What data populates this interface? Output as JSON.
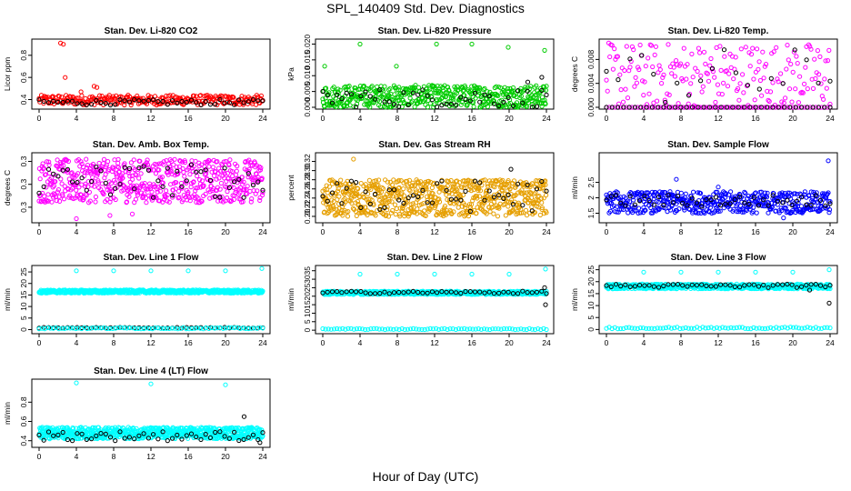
{
  "page": {
    "title": "SPL_140409  Std. Dev. Diagnostics",
    "xlabel": "Hour of Day (UTC)"
  },
  "colors": {
    "red": "#ff0000",
    "green": "#00cc00",
    "magenta": "#ff00ff",
    "orange": "#e69f00",
    "blue": "#0000ff",
    "cyan": "#00ffff",
    "black": "#000000"
  },
  "chart_data": [
    {
      "type": "scatter",
      "title": "Stan. Dev. Li-820 CO2",
      "xlabel": "",
      "ylabel": "Licor ppm",
      "xlim": [
        0,
        24
      ],
      "ylim": [
        0.33,
        0.93
      ],
      "xticks": [
        0,
        4,
        8,
        12,
        16,
        20,
        24
      ],
      "yticks": [
        0.4,
        0.6,
        0.8
      ],
      "series": [
        {
          "color": "red",
          "band": [
            0.35,
            0.44
          ],
          "n": 300,
          "outliers": [
            [
              2.3,
              0.91
            ],
            [
              2.6,
              0.9
            ],
            [
              2.8,
              0.6
            ],
            [
              5.9,
              0.52
            ],
            [
              6.2,
              0.51
            ],
            [
              4.5,
              0.47
            ]
          ]
        },
        {
          "color": "black",
          "band": [
            0.35,
            0.4
          ],
          "n": 48,
          "outliers": []
        }
      ]
    },
    {
      "type": "scatter",
      "title": "Stan. Dev. Li-820 Pressure",
      "xlabel": "",
      "ylabel": "kPa",
      "xlim": [
        0,
        24
      ],
      "ylim": [
        0,
        0.021
      ],
      "xticks": [
        0,
        4,
        8,
        12,
        16,
        20,
        24
      ],
      "yticks": [
        0.0,
        0.005,
        0.01,
        0.015,
        0.02
      ],
      "series": [
        {
          "color": "green",
          "band": [
            0.0,
            0.007
          ],
          "n": 500,
          "outliers": [
            [
              0.2,
              0.013
            ],
            [
              4.0,
              0.02
            ],
            [
              7.9,
              0.013
            ],
            [
              12.2,
              0.02
            ],
            [
              16.0,
              0.02
            ],
            [
              19.9,
              0.019
            ],
            [
              23.8,
              0.018
            ]
          ]
        },
        {
          "color": "black",
          "band": [
            0.0,
            0.006
          ],
          "n": 48,
          "outliers": [
            [
              23.5,
              0.0095
            ],
            [
              22.0,
              0.008
            ]
          ]
        }
      ]
    },
    {
      "type": "scatter",
      "title": "Stan. Dev. Li-820 Temp.",
      "xlabel": "",
      "ylabel": "degrees C",
      "xlim": [
        0,
        24
      ],
      "ylim": [
        0,
        0.0111
      ],
      "xticks": [
        0,
        4,
        8,
        12,
        16,
        20,
        24
      ],
      "yticks": [
        0.0,
        0.004,
        0.008
      ],
      "series": [
        {
          "color": "magenta",
          "band": [
            0.0,
            0.0108
          ],
          "n": 200,
          "outliers": []
        },
        {
          "color": "black",
          "band": [
            0.0,
            0.01
          ],
          "n": 20,
          "outliers": []
        },
        {
          "color": "magenta",
          "band": [
            0.0,
            0.0
          ],
          "n": 80,
          "outliers": []
        },
        {
          "color": "black",
          "band": [
            0.0,
            0.0
          ],
          "n": 40,
          "outliers": []
        }
      ]
    },
    {
      "type": "scatter",
      "title": "Stan. Dev. Amb. Box Temp.",
      "xlabel": "",
      "ylabel": "degrees C",
      "xlim": [
        0,
        24
      ],
      "ylim": [
        0.22,
        0.365
      ],
      "xticks": [
        0,
        4,
        8,
        12,
        16,
        20,
        24
      ],
      "yticks": [
        0.25,
        0.3,
        0.35
      ],
      "series": [
        {
          "color": "magenta",
          "band": [
            0.26,
            0.355
          ],
          "n": 600,
          "outliers": [
            [
              4.0,
              0.225
            ],
            [
              7.6,
              0.232
            ],
            [
              10.0,
              0.235
            ]
          ]
        },
        {
          "color": "black",
          "band": [
            0.27,
            0.345
          ],
          "n": 48,
          "outliers": []
        }
      ]
    },
    {
      "type": "scatter",
      "title": "Stan. Dev. Gas Stream RH",
      "xlabel": "",
      "ylabel": "percent",
      "xlim": [
        0,
        24
      ],
      "ylim": [
        0.19,
        0.335
      ],
      "xticks": [
        0,
        4,
        8,
        12,
        16,
        20,
        24
      ],
      "yticks": [
        0.2,
        0.22,
        0.24,
        0.26,
        0.28,
        0.3,
        0.32
      ],
      "series": [
        {
          "color": "orange",
          "band": [
            0.2,
            0.28
          ],
          "n": 700,
          "outliers": [
            [
              3.3,
              0.325
            ]
          ]
        },
        {
          "color": "black",
          "band": [
            0.21,
            0.28
          ],
          "n": 48,
          "outliers": [
            [
              20.2,
              0.303
            ]
          ]
        }
      ]
    },
    {
      "type": "scatter",
      "title": "Stan. Dev. Sample Flow",
      "xlabel": "",
      "ylabel": "ml/min",
      "xlim": [
        0,
        24
      ],
      "ylim": [
        1.25,
        3.4
      ],
      "xticks": [
        0,
        4,
        8,
        12,
        16,
        20,
        24
      ],
      "yticks": [
        1.5,
        2.0,
        2.5
      ],
      "series": [
        {
          "color": "blue",
          "band": [
            1.5,
            2.2
          ],
          "n": 500,
          "outliers": [
            [
              23.8,
              3.2
            ],
            [
              7.5,
              2.6
            ],
            [
              19.0,
              1.35
            ],
            [
              12.0,
              2.35
            ]
          ]
        },
        {
          "color": "black",
          "band": [
            1.7,
            2.1
          ],
          "n": 48,
          "outliers": []
        }
      ]
    },
    {
      "type": "scatter",
      "title": "Stan. Dev. Line 1 Flow",
      "xlabel": "",
      "ylabel": "ml/min",
      "xlim": [
        0,
        24
      ],
      "ylim": [
        -1,
        27
      ],
      "xticks": [
        0,
        4,
        8,
        12,
        16,
        20,
        24
      ],
      "yticks": [
        0,
        5,
        10,
        15,
        20,
        25
      ],
      "series": [
        {
          "color": "cyan",
          "band": [
            15.8,
            17.2
          ],
          "n": 600,
          "outliers": [
            [
              4.0,
              25.5
            ],
            [
              8.0,
              25.5
            ],
            [
              12.0,
              25.5
            ],
            [
              16.0,
              25.5
            ],
            [
              20.0,
              25.5
            ],
            [
              23.9,
              26.5
            ]
          ]
        },
        {
          "color": "black",
          "band": [
            0.6,
            1.0
          ],
          "n": 48,
          "outliers": []
        },
        {
          "color": "cyan",
          "band": [
            0.3,
            0.9
          ],
          "n": 80,
          "outliers": []
        }
      ]
    },
    {
      "type": "scatter",
      "title": "Stan. Dev. Line 2 Flow",
      "xlabel": "",
      "ylabel": "ml/min",
      "xlim": [
        0,
        24
      ],
      "ylim": [
        -1,
        37
      ],
      "xticks": [
        0,
        4,
        8,
        12,
        16,
        20,
        24
      ],
      "yticks": [
        0,
        5,
        10,
        15,
        20,
        25,
        30,
        35
      ],
      "series": [
        {
          "color": "cyan",
          "band": [
            21.0,
            23.0
          ],
          "n": 600,
          "outliers": [
            [
              4.0,
              33
            ],
            [
              8.0,
              33
            ],
            [
              12.0,
              33
            ],
            [
              16.0,
              33
            ],
            [
              20.0,
              33
            ],
            [
              23.9,
              36
            ]
          ]
        },
        {
          "color": "black",
          "band": [
            21.5,
            23.0
          ],
          "n": 48,
          "outliers": [
            [
              23.9,
              15
            ],
            [
              23.8,
              25
            ]
          ]
        },
        {
          "color": "cyan",
          "band": [
            0.3,
            1.0
          ],
          "n": 80,
          "outliers": []
        }
      ]
    },
    {
      "type": "scatter",
      "title": "Stan. Dev. Line 3 Flow",
      "xlabel": "",
      "ylabel": "ml/min",
      "xlim": [
        0,
        24
      ],
      "ylim": [
        -1,
        26
      ],
      "xticks": [
        0,
        4,
        8,
        12,
        16,
        20,
        24
      ],
      "yticks": [
        0,
        5,
        10,
        15,
        20,
        25
      ],
      "series": [
        {
          "color": "cyan",
          "band": [
            17.0,
            19.0
          ],
          "n": 600,
          "outliers": [
            [
              4.0,
              24
            ],
            [
              8.0,
              24
            ],
            [
              12.0,
              24
            ],
            [
              16.0,
              24
            ],
            [
              20.0,
              24
            ],
            [
              23.9,
              25
            ]
          ]
        },
        {
          "color": "black",
          "band": [
            17.5,
            19.0
          ],
          "n": 48,
          "outliers": [
            [
              23.9,
              11
            ],
            [
              21.8,
              16.5
            ]
          ]
        },
        {
          "color": "cyan",
          "band": [
            0.3,
            1.0
          ],
          "n": 80,
          "outliers": []
        }
      ]
    },
    {
      "type": "scatter",
      "title": "Stan. Dev. Line 4 (LT) Flow",
      "xlabel": "",
      "ylabel": "ml/min",
      "xlim": [
        0,
        24
      ],
      "ylim": [
        0.35,
        1.02
      ],
      "xticks": [
        0,
        4,
        8,
        12,
        16,
        20,
        24
      ],
      "yticks": [
        0.4,
        0.6,
        0.8
      ],
      "series": [
        {
          "color": "cyan",
          "band": [
            0.42,
            0.54
          ],
          "n": 700,
          "outliers": [
            [
              4.0,
              1.0
            ],
            [
              12.0,
              0.99
            ],
            [
              20.0,
              0.98
            ]
          ]
        },
        {
          "color": "black",
          "band": [
            0.4,
            0.5
          ],
          "n": 48,
          "outliers": [
            [
              22.0,
              0.65
            ],
            [
              23.7,
              0.38
            ]
          ]
        }
      ]
    }
  ]
}
